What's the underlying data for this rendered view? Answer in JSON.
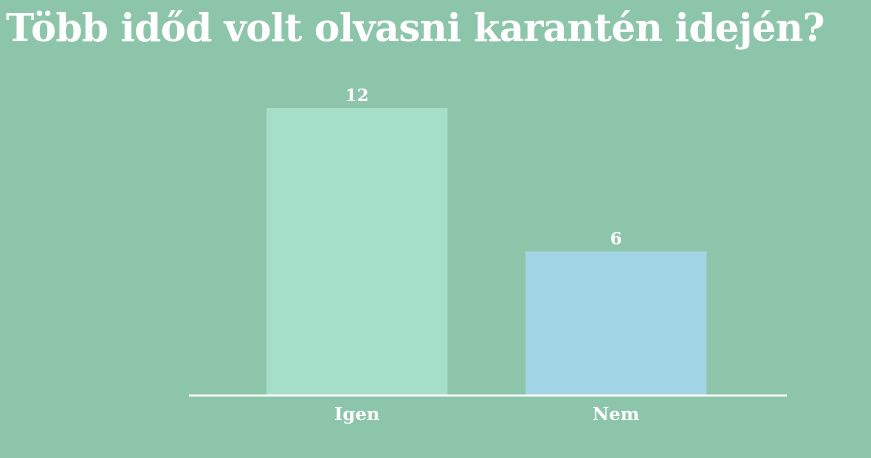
{
  "chart_data": {
    "type": "bar",
    "title": "Több időd volt olvasni karantén idején?",
    "categories": [
      "Igen",
      "Nem"
    ],
    "values": [
      12,
      6
    ],
    "value_labels": [
      "12",
      "6"
    ],
    "colors": [
      "#a5dfc7",
      "#a1d5e6"
    ],
    "xlabel": "",
    "ylabel": "",
    "ylim": [
      0,
      12
    ],
    "grid": false,
    "legend": "none"
  },
  "colors": {
    "background": "#8dc5aa",
    "text": "#ffffff",
    "axis": "#ffffff"
  }
}
